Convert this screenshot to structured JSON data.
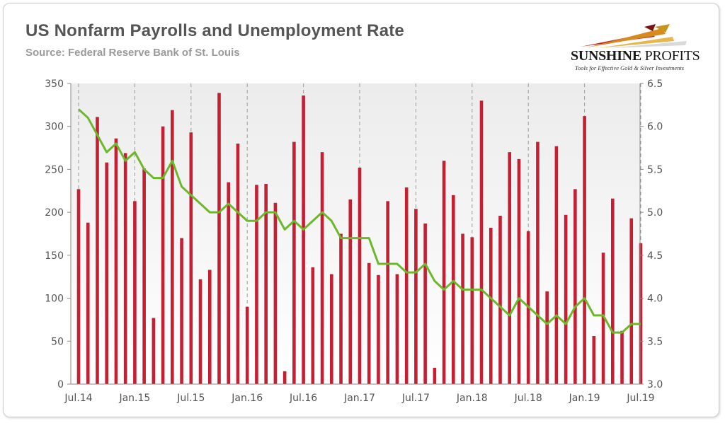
{
  "header": {
    "title": "US Nonfarm Payrolls and Unemployment Rate",
    "subtitle": "Source: Federal Reserve Bank of St. Louis"
  },
  "logo": {
    "name_part1": "SUNSHINE",
    "name_part2": "PROFITS",
    "tagline": "Tools for Effective Gold & Silver Investments",
    "icon": "golden-arrow-rays-icon"
  },
  "colors": {
    "bars": "#c41f32",
    "line": "#6cb82a",
    "plot_background_top": "#eeeeee",
    "plot_background_bottom": "#ffffff"
  },
  "chart_data": {
    "type": "bar",
    "categories": [
      "Jul.14",
      "Aug.14",
      "Sep.14",
      "Oct.14",
      "Nov.14",
      "Dec.14",
      "Jan.15",
      "Feb.15",
      "Mar.15",
      "Apr.15",
      "May.15",
      "Jun.15",
      "Jul.15",
      "Aug.15",
      "Sep.15",
      "Oct.15",
      "Nov.15",
      "Dec.15",
      "Jan.16",
      "Feb.16",
      "Mar.16",
      "Apr.16",
      "May.16",
      "Jun.16",
      "Jul.16",
      "Aug.16",
      "Sep.16",
      "Oct.16",
      "Nov.16",
      "Dec.16",
      "Jan.17",
      "Feb.17",
      "Mar.17",
      "Apr.17",
      "May.17",
      "Jun.17",
      "Jul.17",
      "Aug.17",
      "Sep.17",
      "Oct.17",
      "Nov.17",
      "Dec.17",
      "Jan.18",
      "Feb.18",
      "Mar.18",
      "Apr.18",
      "May.18",
      "Jun.18",
      "Jul.18",
      "Aug.18",
      "Sep.18",
      "Oct.18",
      "Nov.18",
      "Dec.18",
      "Jan.19",
      "Feb.19",
      "Mar.19",
      "Apr.19",
      "May.19",
      "Jun.19",
      "Jul.19"
    ],
    "x_tick_labels": [
      "Jul.14",
      "Jan.15",
      "Jul.15",
      "Jan.16",
      "Jul.16",
      "Jan.17",
      "Jul.17",
      "Jan.18",
      "Jul.18",
      "Jan.19",
      "Jul.19"
    ],
    "series": [
      {
        "axis": "left",
        "type": "bar",
        "values": [
          227,
          188,
          311,
          258,
          286,
          269,
          213,
          251,
          77,
          300,
          319,
          170,
          293,
          122,
          133,
          339,
          235,
          280,
          90,
          232,
          233,
          211,
          15,
          282,
          336,
          136,
          270,
          128,
          175,
          215,
          252,
          141,
          127,
          213,
          128,
          229,
          204,
          187,
          19,
          260,
          220,
          175,
          171,
          330,
          182,
          196,
          270,
          262,
          178,
          282,
          108,
          277,
          197,
          227,
          312,
          56,
          153,
          216,
          62,
          193,
          164
        ]
      },
      {
        "axis": "right",
        "type": "line",
        "values": [
          6.2,
          6.1,
          5.9,
          5.7,
          5.8,
          5.6,
          5.7,
          5.5,
          5.4,
          5.4,
          5.6,
          5.3,
          5.2,
          5.1,
          5.0,
          5.0,
          5.1,
          5.0,
          4.9,
          4.9,
          5.0,
          5.0,
          4.8,
          4.9,
          4.8,
          4.9,
          5.0,
          4.9,
          4.7,
          4.7,
          4.7,
          4.7,
          4.4,
          4.4,
          4.4,
          4.3,
          4.3,
          4.4,
          4.2,
          4.1,
          4.2,
          4.1,
          4.1,
          4.1,
          4.0,
          3.9,
          3.8,
          4.0,
          3.9,
          3.8,
          3.7,
          3.8,
          3.7,
          3.9,
          4.0,
          3.8,
          3.8,
          3.6,
          3.6,
          3.7,
          3.7
        ]
      }
    ],
    "y_left": {
      "ylim": [
        0,
        350
      ],
      "ticks": [
        "0",
        "50",
        "100",
        "150",
        "200",
        "250",
        "300",
        "350"
      ]
    },
    "y_right": {
      "ylim": [
        3.0,
        6.5
      ],
      "ticks": [
        "3.0",
        "3.5",
        "4.0",
        "4.5",
        "5.0",
        "5.5",
        "6.0",
        "6.5"
      ]
    },
    "grid": "vertical-dashed",
    "legend": "none"
  }
}
